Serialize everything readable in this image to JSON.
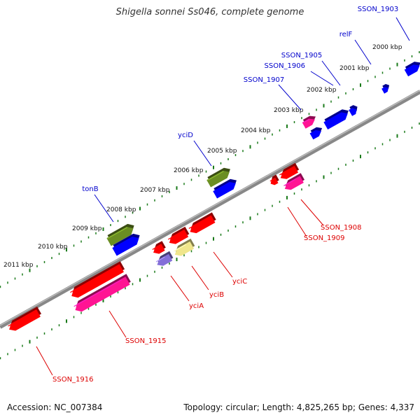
{
  "title": "Shigella sonnei Ss046, complete genome",
  "footer": {
    "accession": "Accession: NC_007384",
    "topology": "Topology: circular; Length: 4,825,265 bp; Genes: 4,337"
  },
  "ticks": [
    "2000 kbp",
    "2001 kbp",
    "2002 kbp",
    "2003 kbp",
    "2004 kbp",
    "2005 kbp",
    "2006 kbp",
    "2007 kbp",
    "2008 kbp",
    "2009 kbp",
    "2010 kbp",
    "2011 kbp"
  ],
  "forward_genes": [
    "SSON_1903",
    "relF",
    "SSON_1905",
    "SSON_1906",
    "SSON_1907",
    "yciD",
    "tonB"
  ],
  "reverse_genes": [
    "SSON_1908",
    "SSON_1909",
    "yciC",
    "yciB",
    "yciA",
    "SSON_1915",
    "SSON_1916"
  ],
  "colors": {
    "forward_label": "#0000cc",
    "reverse_label": "#dd0000",
    "backbone": "#888888",
    "tick": "#1a7a1a",
    "blue": "#0000ff",
    "red": "#ff0000",
    "pink": "#ff1493",
    "olive": "#6b8e23",
    "lavender": "#8470d8",
    "yellow": "#f0e68c"
  }
}
